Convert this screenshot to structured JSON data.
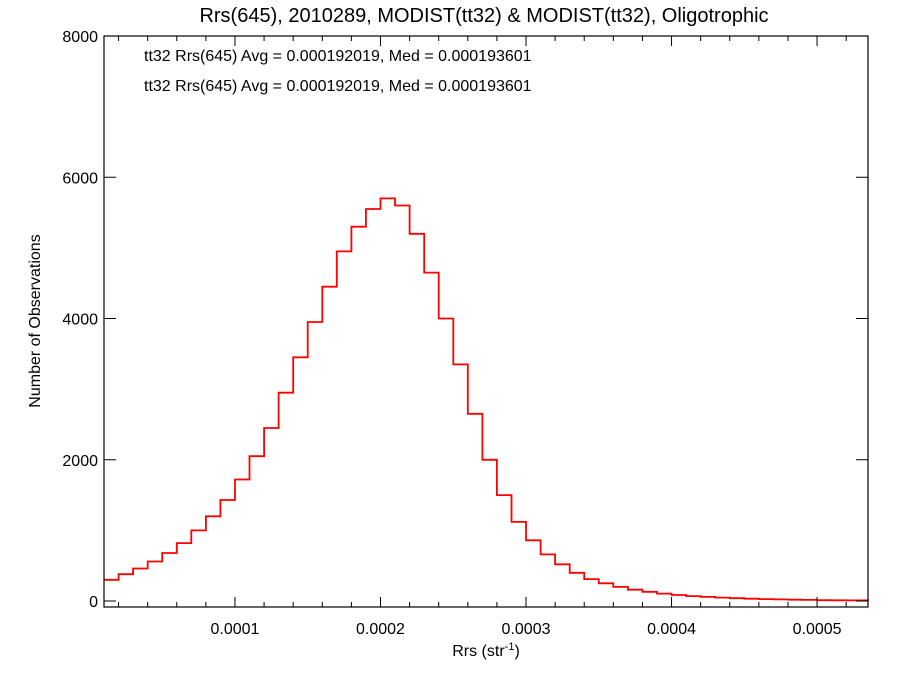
{
  "chart_data": {
    "type": "line",
    "title": "Rrs(645), 2010289, MODIST(tt32) & MODIST(tt32), Oligotrophic",
    "xlabel_main": "Rrs (str",
    "xlabel_sup": "-1",
    "xlabel_close": ")",
    "ylabel": "Number of Observations",
    "xlim": [
      1e-05,
      0.000535
    ],
    "ylim": [
      0,
      8000
    ],
    "x_ticks": [
      0.0001,
      0.0002,
      0.0003,
      0.0004,
      0.0005
    ],
    "x_tick_labels": [
      "0.0001",
      "0.0002",
      "0.0003",
      "0.0004",
      "0.0005"
    ],
    "y_ticks": [
      0,
      2000,
      4000,
      6000,
      8000
    ],
    "y_tick_labels": [
      "0",
      "2000",
      "4000",
      "6000",
      "8000"
    ],
    "grid": false,
    "legend": [
      {
        "text": "tt32 Rrs(645) Avg = 0.000192019, Med = 0.000193601",
        "color": "#000000"
      },
      {
        "text": "tt32 Rrs(645) Avg = 0.000192019, Med = 0.000193601",
        "color": "#ff0000"
      }
    ],
    "series": [
      {
        "color": "#ff0000",
        "overlay_color": "#000000",
        "x": [
          1e-05,
          2e-05,
          3e-05,
          4e-05,
          5e-05,
          6e-05,
          7e-05,
          8e-05,
          9e-05,
          0.0001,
          0.00011,
          0.00012,
          0.00013,
          0.00014,
          0.00015,
          0.00016,
          0.00017,
          0.00018,
          0.00019,
          0.0002,
          0.00021,
          0.00022,
          0.00023,
          0.00024,
          0.00025,
          0.00026,
          0.00027,
          0.00028,
          0.00029,
          0.0003,
          0.00031,
          0.00032,
          0.00033,
          0.00034,
          0.00035,
          0.00036,
          0.00037,
          0.00038,
          0.00039,
          0.0004,
          0.00041,
          0.00042,
          0.00043,
          0.00044,
          0.00045,
          0.00046,
          0.00047,
          0.00048,
          0.00049,
          0.0005,
          0.00051,
          0.00052,
          0.000535
        ],
        "y": [
          300,
          380,
          460,
          560,
          680,
          820,
          1000,
          1200,
          1430,
          1720,
          2050,
          2450,
          2950,
          3450,
          3950,
          4450,
          4950,
          5300,
          5550,
          5700,
          5600,
          5200,
          4650,
          4000,
          3350,
          2650,
          2000,
          1500,
          1120,
          860,
          660,
          520,
          400,
          310,
          250,
          200,
          160,
          130,
          105,
          85,
          70,
          58,
          48,
          40,
          33,
          27,
          22,
          18,
          15,
          12,
          10,
          8,
          6
        ]
      }
    ]
  }
}
